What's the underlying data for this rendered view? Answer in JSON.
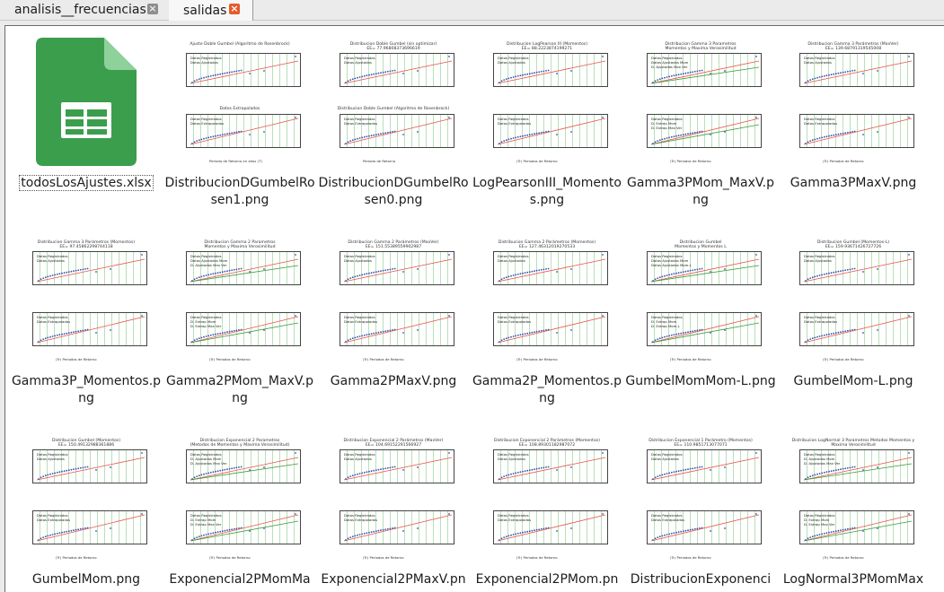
{
  "tabs": [
    {
      "label": "analisis__frecuencias",
      "close": "×"
    },
    {
      "label": "salidas",
      "close": "×"
    }
  ],
  "files": [
    {
      "name": "todosLosAjustes.xlsx",
      "type": "spreadsheet-icon"
    },
    {
      "name": "DistribucionDGumbelRosen1.png",
      "type": "chart"
    },
    {
      "name": "DistribucionDGumbelRosen0.png",
      "type": "chart"
    },
    {
      "name": "LogPearsonIII_Momentos.png",
      "type": "chart"
    },
    {
      "name": "Gamma3PMom_MaxV.png",
      "type": "chart"
    },
    {
      "name": "Gamma3PMaxV.png",
      "type": "chart"
    },
    {
      "name": "Gamma3P_Momentos.png",
      "type": "chart"
    },
    {
      "name": "Gamma2PMom_MaxV.png",
      "type": "chart"
    },
    {
      "name": "Gamma2PMaxV.png",
      "type": "chart"
    },
    {
      "name": "Gamma2P_Momentos.png",
      "type": "chart"
    },
    {
      "name": "GumbelMomMom-L.png",
      "type": "chart"
    },
    {
      "name": "GumbelMom-L.png",
      "type": "chart"
    },
    {
      "name": "GumbelMom.png",
      "type": "chart"
    },
    {
      "name": "Exponencial2PMomMa",
      "type": "chart"
    },
    {
      "name": "Exponencial2PMaxV.pn",
      "type": "chart"
    },
    {
      "name": "Exponencial2PMom.pn",
      "type": "chart"
    },
    {
      "name": "DistribucionExponenci",
      "type": "chart"
    },
    {
      "name": "LogNormal3PMomMax",
      "type": "chart"
    }
  ],
  "thumbs": [
    {
      "title": "Ajuste Doble Gumbel (Algoritmo de Rosenbrock)",
      "title2": "Datos Extrapolados",
      "legend1": [
        "Datos Registrados",
        "Datos Ajustados"
      ],
      "legend2": [
        "Datos Registrados",
        "Datos Extrapolados"
      ],
      "xlabel": "Periodo de Retorno en años (T)"
    },
    {
      "title": "Distribucion Doble Gumbel (sin optimizar)",
      "sub": "EE= 77.96808373696619",
      "title2": "Distribucion Doble Gumbel (Algoritmo de Rosenbrock)",
      "legend1": [
        "Datos Registrados",
        "Datos Ajustados"
      ],
      "legend2": [
        "Datos Registrados",
        "Datos Extrapolados"
      ],
      "xlabel": "Periodo de Retorno"
    },
    {
      "title": "Distribucion LogPearson III (Momentos)",
      "sub": "EE= 88.2223874199271",
      "legend1": [
        "Datos Registrados",
        "Datos Ajustados"
      ],
      "legend2": [
        "Datos Registrados",
        "Datos Extrapolados"
      ],
      "xlabel": "(Tr) Periodos de Retorno"
    },
    {
      "title": "Distribucion Gamma 3 Parametros",
      "sub": "Momentos y Maxima Verosimilitud",
      "legend1": [
        "Datos Registrados",
        "Datos Ajustados Mom",
        "D. Ajustados Max Ver"
      ],
      "legend2": [
        "Datos Registrados",
        "D. Extrap Mom",
        "D. Extrap Max Ver"
      ],
      "xlabel": "(Tr) Periodos de Retorno"
    },
    {
      "title": "Distribucion Gamma 3 Parámetros (MaxVer)",
      "sub": "EE= 139.68791319545008",
      "legend1": [
        "Datos Registrados",
        "Datos Ajustados"
      ],
      "legend2": [
        "Datos Registrados",
        "Datos Extrapolados"
      ],
      "xlabel": "(Tr) Periodos de Retorno"
    },
    {
      "title": "Distribucion Gamma 3 Parámetros (Momentos)",
      "sub": "EE= 97.45862298744118",
      "legend1": [
        "Datos Registrados",
        "Datos Ajustados"
      ],
      "legend2": [
        "Datos Registrados",
        "Datos Extrapolados"
      ],
      "xlabel": "(Tr) Periodos de Retorno"
    },
    {
      "title": "Distribucion Gamma 2 Parametros",
      "sub": "Momentos y Maxima Verosimilitud",
      "legend1": [
        "Datos Registrados",
        "Datos Ajustados Mom",
        "D. Ajustados Max Ver"
      ],
      "legend2": [
        "Datos Registrados",
        "D. Extrap Mom",
        "D. Extrap Max Ver"
      ],
      "xlabel": "(Tr) Periodos de Retorno"
    },
    {
      "title": "Distribucion Gamma 2 Parámetros (MaxVer)",
      "sub": "EE= 151.55389559902987",
      "legend1": [
        "Datos Registrados",
        "Datos Ajustados"
      ],
      "legend2": [
        "Datos Registrados",
        "Datos Extrapolados"
      ],
      "xlabel": "(Tr) Periodos de Retorno"
    },
    {
      "title": "Distribucion Gamma 2 Parámetros (Momentos)",
      "sub": "EE= 127.46312019270533",
      "legend1": [
        "Datos Registrados",
        "Datos Ajustados"
      ],
      "legend2": [
        "Datos Registrados",
        "Datos Extrapolados"
      ],
      "xlabel": "(Tr) Periodos de Retorno"
    },
    {
      "title": "Distribucion Gumbel",
      "sub": "Momentos y Momentos L",
      "legend1": [
        "Datos Registrados",
        "Datos Ajustados Mom",
        "Datos Ajustados Mom-L"
      ],
      "legend2": [
        "Datos Registrados",
        "D. Extrap Mom",
        "D. Extrap Mom-L"
      ],
      "xlabel": "(Tr) Periodos de Retorno"
    },
    {
      "title": "Distribucion Gumbel (Momentos-L)",
      "sub": "EE= 159.93671426727726",
      "legend1": [
        "Datos Registrados",
        "Datos Ajustados"
      ],
      "legend2": [
        "Datos Registrados",
        "Datos Extrapolados"
      ],
      "xlabel": "(Tr) Periodos de Retorno"
    },
    {
      "title": "Distribucion Gumbel (Momentos)",
      "sub": "EE= 150.49132988361886",
      "legend1": [
        "Datos Registrados",
        "Datos Ajustados"
      ],
      "legend2": [
        "Datos Registrados",
        "Datos Extrapolados"
      ],
      "xlabel": "(Tr) Periodos de Retorno"
    },
    {
      "title": "Distribucion Exponencial 2 Parametros",
      "sub": "(Metodos de Momentos y Maxima Verosimilitud)",
      "legend1": [
        "Datos Registrados",
        "D. Ajustados Mom",
        "D. Ajustados Max Ver"
      ],
      "legend2": [
        "Datos Registrados",
        "D. Extrap Mom",
        "D. Extrap Max Ver"
      ],
      "xlabel": "(Tr) Periodos de Retorno"
    },
    {
      "title": "Distribucion Exponencial 2 Parámetros (MaxVer)",
      "sub": "EE= 104.69152291566927",
      "legend1": [
        "Datos Registrados",
        "Datos Ajustados"
      ],
      "legend2": [
        "Datos Registrados",
        "Datos Extrapolados"
      ],
      "xlabel": "(Tr) Periodos de Retorno"
    },
    {
      "title": "Distribucion Exponencial 2 Parámetros (Momentos)",
      "sub": "EE= 108.89301182987072",
      "legend1": [
        "Datos Registrados",
        "Datos Ajustados"
      ],
      "legend2": [
        "Datos Registrados",
        "Datos Extrapolados"
      ],
      "xlabel": "(Tr) Periodos de Retorno"
    },
    {
      "title": "Distribucion Exponencial 1 Parámetro (Momentos)",
      "sub": "EE= 110.9851713077071",
      "legend1": [
        "Datos Registrados",
        "Datos Ajustados"
      ],
      "legend2": [
        "Datos Registrados",
        "Datos Extrapolados"
      ],
      "xlabel": "(Tr) Periodos de Retorno"
    },
    {
      "title": "Distribucion LogNormal 3 Parametros Metodos Momentos y",
      "sub": "Maxima Verosimilitud",
      "legend1": [
        "Datos Registrados",
        "D. Ajustados Mom",
        "D. Ajustados Max Ver"
      ],
      "legend2": [
        "Datos Registrados",
        "D. Extrap Mom",
        "D. Extrap Max Ver"
      ],
      "xlabel": "(Tr) Periodos de Retorno"
    }
  ],
  "colors": {
    "sheet_green": "#3a9e4c",
    "sheet_fold": "#8fd19b",
    "fit_red": "#e8534a",
    "fit_green": "#3c9b3c",
    "data_blue": "#3b4fa8"
  }
}
